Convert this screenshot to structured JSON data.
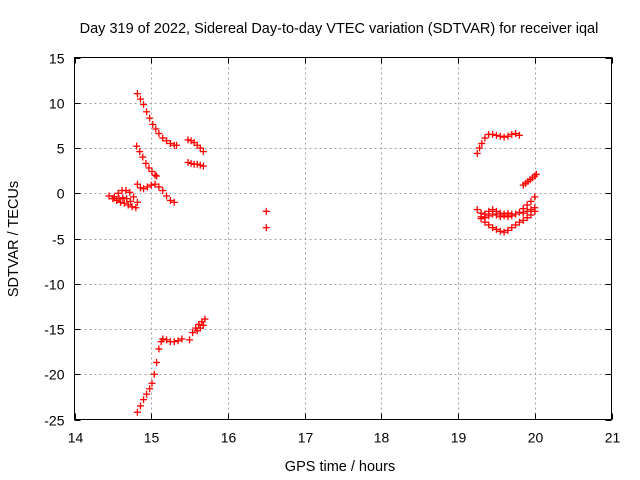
{
  "chart_data": {
    "type": "scatter",
    "title": "Day 319 of 2022, Sidereal Day-to-day VTEC variation (SDTVAR) for receiver iqal",
    "xlabel": "GPS time / hours",
    "ylabel": "SDTVAR / TECUs",
    "xlim": [
      14,
      21
    ],
    "ylim": [
      -25,
      15
    ],
    "xticks": [
      14,
      15,
      16,
      17,
      18,
      19,
      20,
      21
    ],
    "yticks": [
      -25,
      -20,
      -15,
      -10,
      -5,
      0,
      5,
      10,
      15
    ],
    "grid": true,
    "legend": "none",
    "marker": "plus",
    "colors": {
      "points": "#ff0000",
      "grid": "#a0a0a0",
      "axes": "#000000"
    },
    "series": [
      {
        "x": [
          14.82,
          14.86,
          14.9,
          14.94,
          14.98,
          15.02,
          15.06,
          15.1,
          15.15,
          15.2,
          15.25,
          15.3,
          15.33
        ],
        "y": [
          11.0,
          10.4,
          9.8,
          9.0,
          8.3,
          7.6,
          7.1,
          6.6,
          6.1,
          5.8,
          5.5,
          5.3,
          5.3
        ]
      },
      {
        "x": [
          14.81,
          14.85,
          14.89,
          14.93,
          14.97,
          15.01,
          15.05,
          15.07
        ],
        "y": [
          5.2,
          4.6,
          4.0,
          3.3,
          2.8,
          2.4,
          2.0,
          1.9
        ]
      },
      {
        "x": [
          14.82,
          14.86,
          14.9,
          14.95,
          15.0,
          15.05,
          15.1,
          15.15,
          15.2,
          15.25,
          15.3
        ],
        "y": [
          1.0,
          0.6,
          0.5,
          0.7,
          0.9,
          1.0,
          0.7,
          0.3,
          -0.3,
          -0.8,
          -1.0
        ]
      },
      {
        "x": [
          15.48,
          15.52,
          15.56,
          15.6,
          15.64,
          15.68
        ],
        "y": [
          5.9,
          5.8,
          5.6,
          5.3,
          5.0,
          4.6
        ]
      },
      {
        "x": [
          15.48,
          15.52,
          15.56,
          15.6,
          15.64,
          15.68
        ],
        "y": [
          3.4,
          3.3,
          3.2,
          3.2,
          3.1,
          3.0
        ]
      },
      {
        "x": [
          14.45,
          14.5,
          14.55,
          14.6,
          14.65,
          14.7,
          14.75,
          14.8
        ],
        "y": [
          -0.3,
          -0.6,
          -0.8,
          -1.0,
          -1.1,
          -1.3,
          -1.5,
          -1.6
        ]
      },
      {
        "x": [
          14.52,
          14.57,
          14.62,
          14.67,
          14.72,
          14.77,
          14.82
        ],
        "y": [
          -0.4,
          0.0,
          0.3,
          0.3,
          0.1,
          -0.4,
          -1.0
        ]
      },
      {
        "x": [
          14.58,
          14.63,
          14.68,
          14.73
        ],
        "y": [
          -0.6,
          -0.5,
          -0.6,
          -0.9
        ]
      },
      {
        "x": [
          14.82,
          14.86,
          14.9,
          14.94,
          14.98,
          15.01,
          15.04,
          15.07,
          15.1,
          15.13,
          15.15,
          15.2,
          15.25,
          15.3,
          15.35,
          15.4
        ],
        "y": [
          -24.2,
          -23.5,
          -22.8,
          -22.2,
          -21.6,
          -21.0,
          -20.0,
          -18.7,
          -17.2,
          -16.4,
          -16.1,
          -16.2,
          -16.4,
          -16.4,
          -16.3,
          -16.1
        ]
      },
      {
        "x": [
          15.5,
          15.54,
          15.58,
          15.62,
          15.66,
          15.7
        ],
        "y": [
          -16.2,
          -15.4,
          -14.9,
          -14.5,
          -14.2,
          -13.9
        ]
      },
      {
        "x": [
          15.6,
          15.64,
          15.68
        ],
        "y": [
          -15.2,
          -14.9,
          -14.6
        ]
      },
      {
        "x": [
          16.5,
          16.5
        ],
        "y": [
          -2.0,
          -3.8
        ]
      },
      {
        "x": [
          19.25,
          19.28,
          19.31,
          19.35,
          19.4,
          19.45,
          19.5,
          19.55,
          19.6,
          19.65,
          19.7,
          19.75,
          19.8
        ],
        "y": [
          4.4,
          5.0,
          5.5,
          6.1,
          6.5,
          6.5,
          6.4,
          6.3,
          6.2,
          6.3,
          6.5,
          6.6,
          6.4
        ]
      },
      {
        "x": [
          19.25,
          19.3,
          19.35,
          19.4,
          19.45,
          19.5,
          19.55,
          19.6,
          19.65,
          19.7
        ],
        "y": [
          -1.8,
          -2.2,
          -2.3,
          -2.0,
          -1.8,
          -2.0,
          -2.2,
          -2.3,
          -2.2,
          -2.3
        ]
      },
      {
        "x": [
          19.3,
          19.35,
          19.4,
          19.45,
          19.5,
          19.55,
          19.6,
          19.65,
          19.7,
          19.75,
          19.8,
          19.85,
          19.9,
          19.95,
          20.0
        ],
        "y": [
          -2.8,
          -3.2,
          -3.5,
          -3.8,
          -4.0,
          -4.2,
          -4.3,
          -4.1,
          -3.8,
          -3.5,
          -3.2,
          -3.0,
          -2.7,
          -2.4,
          -2.0
        ]
      },
      {
        "x": [
          19.3,
          19.35,
          19.4,
          19.45,
          19.5,
          19.55,
          19.6,
          19.65,
          19.7,
          19.75,
          19.8,
          19.85,
          19.9,
          19.95,
          20.0
        ],
        "y": [
          -2.6,
          -2.7,
          -2.5,
          -2.3,
          -2.4,
          -2.6,
          -2.5,
          -2.6,
          -2.5,
          -2.3,
          -2.1,
          -1.7,
          -1.3,
          -0.9,
          -0.4
        ]
      },
      {
        "x": [
          19.85,
          19.9,
          19.95,
          20.0
        ],
        "y": [
          -2.2,
          -2.0,
          -1.8,
          -1.6
        ]
      },
      {
        "x": [
          19.85,
          19.88,
          19.91,
          19.94,
          19.97,
          20.0,
          20.02
        ],
        "y": [
          0.9,
          1.1,
          1.3,
          1.5,
          1.7,
          1.9,
          2.1
        ]
      }
    ]
  }
}
